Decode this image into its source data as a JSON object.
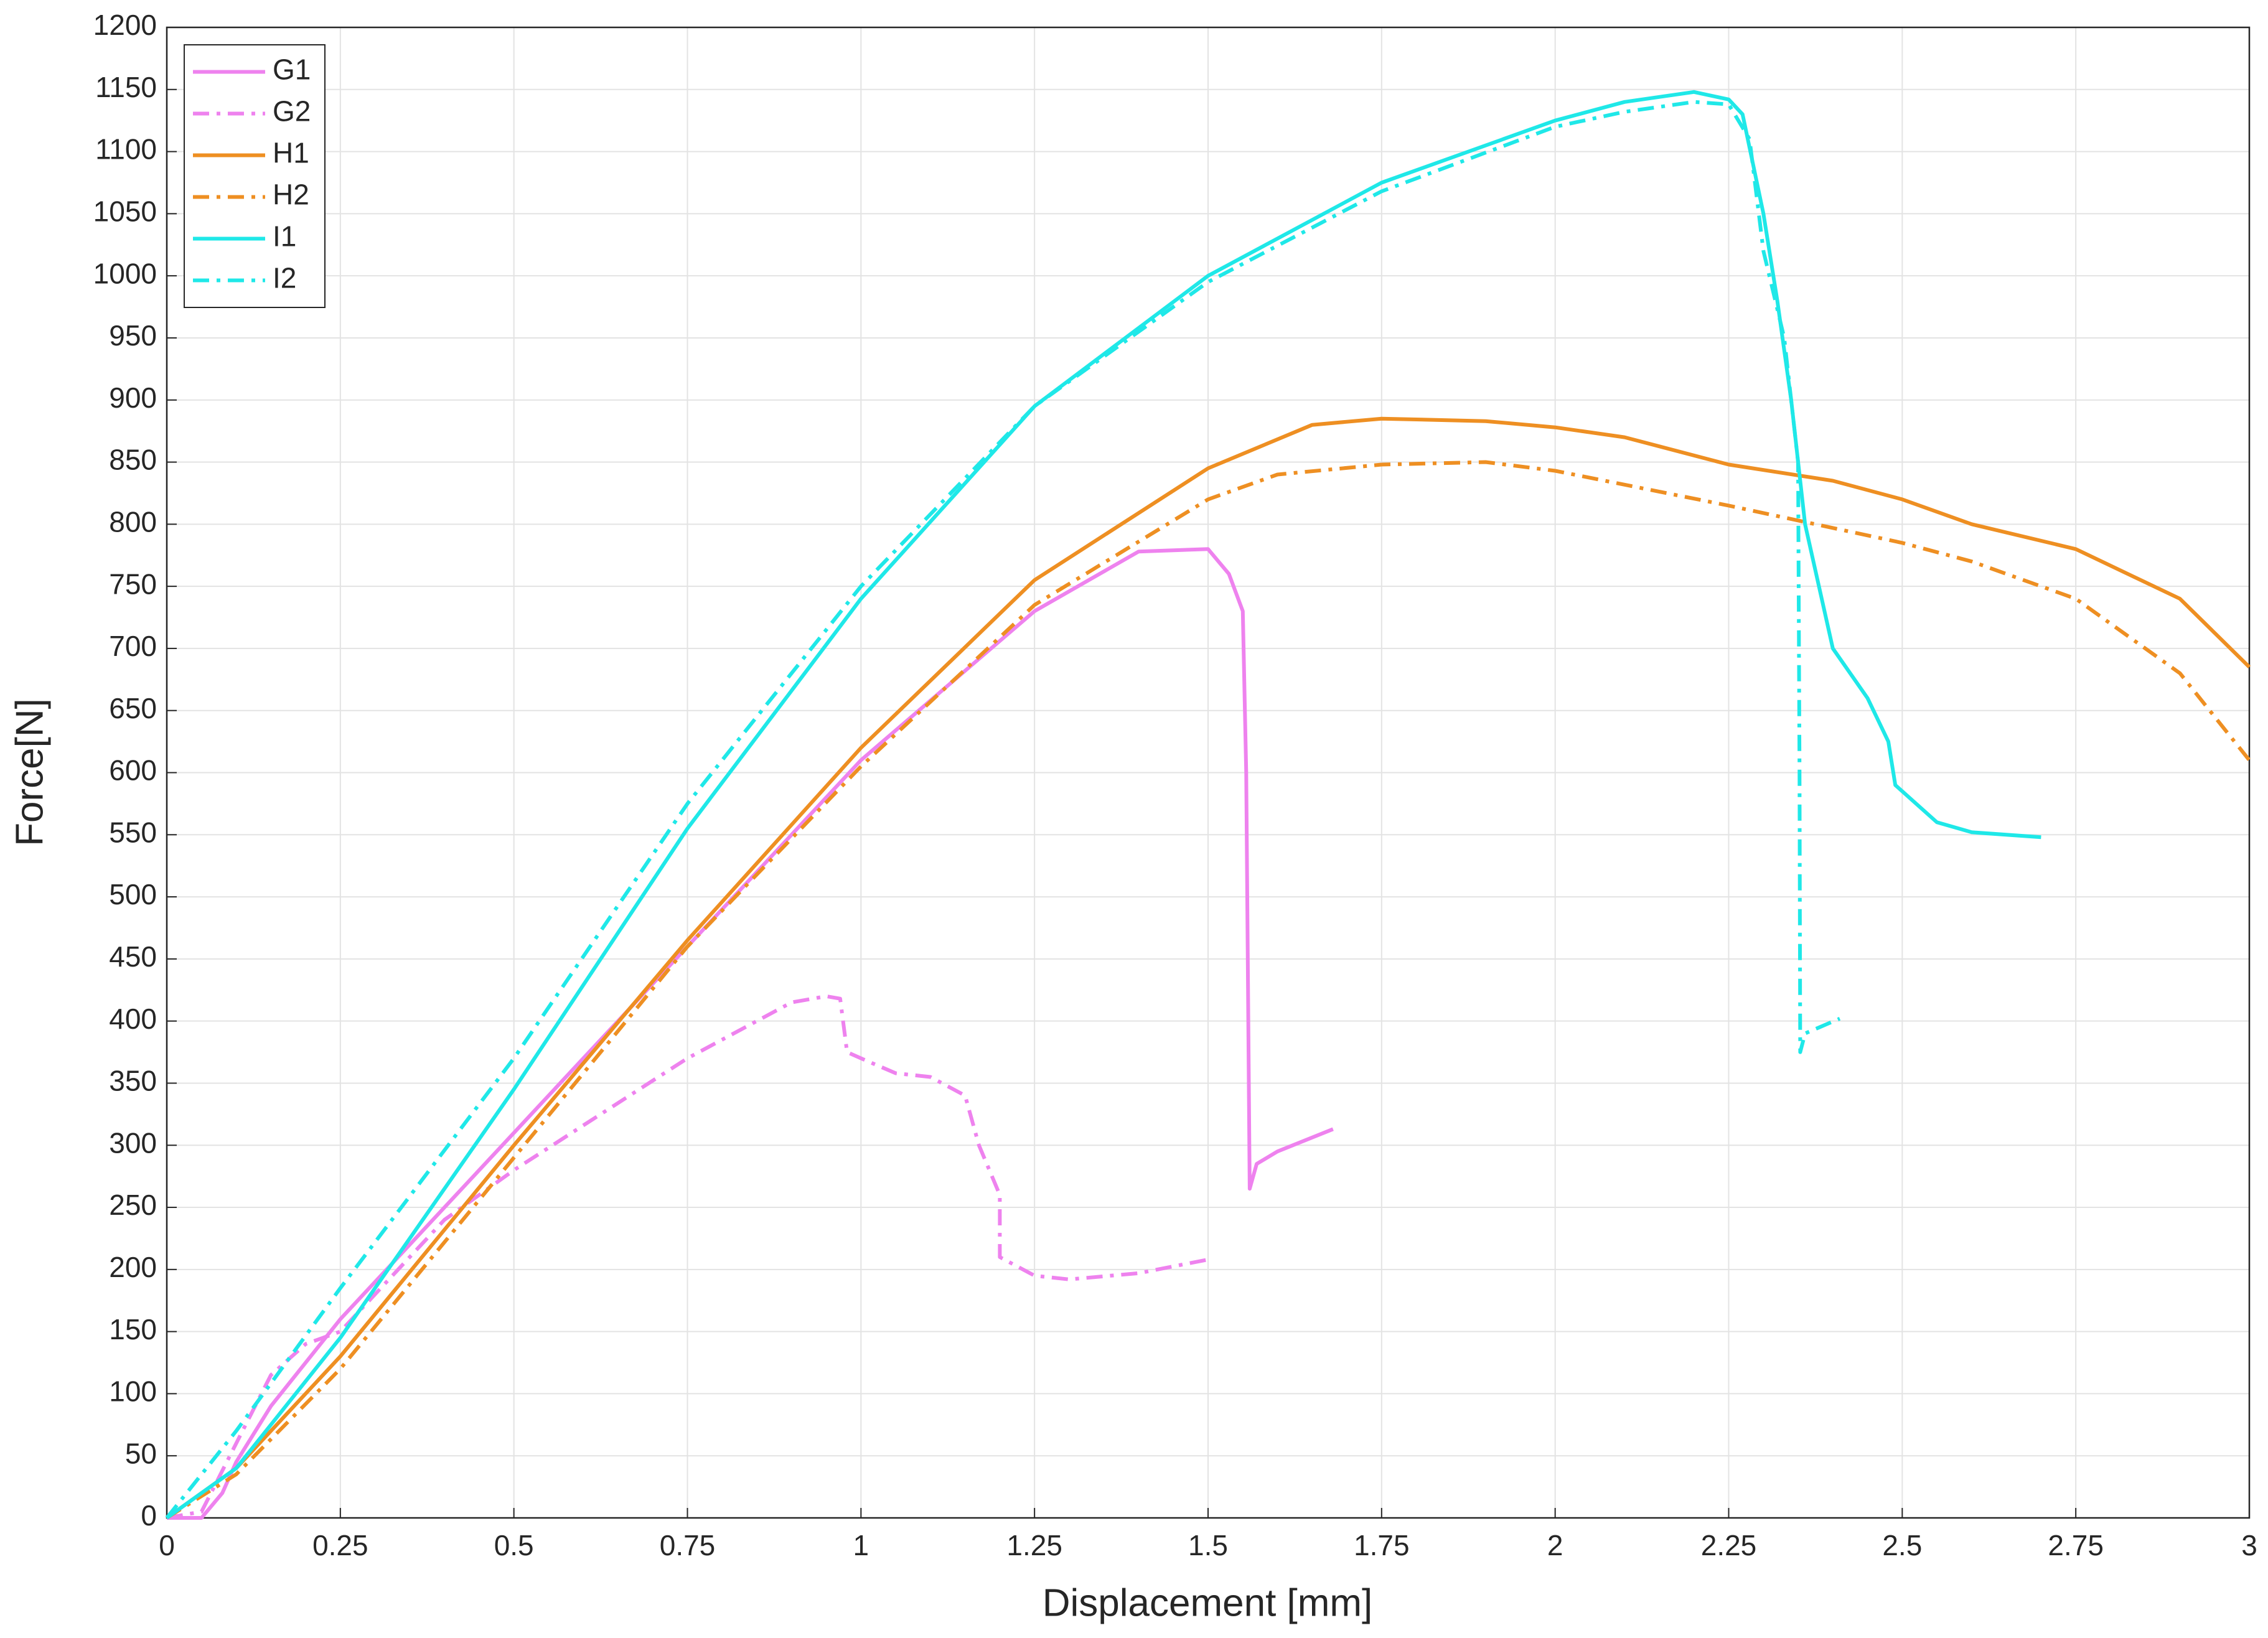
{
  "chart_data": {
    "type": "line",
    "x_label": "Displacement [mm]",
    "y_label": "Force[N]",
    "xlim": [
      0,
      3
    ],
    "ylim": [
      0,
      1200
    ],
    "xticks": [
      0,
      0.25,
      0.5,
      0.75,
      1,
      1.25,
      1.5,
      1.75,
      2,
      2.25,
      2.5,
      2.75,
      3
    ],
    "yticks": [
      0,
      50,
      100,
      150,
      200,
      250,
      300,
      350,
      400,
      450,
      500,
      550,
      600,
      650,
      700,
      750,
      800,
      850,
      900,
      950,
      1000,
      1050,
      1100,
      1150,
      1200
    ],
    "grid": true,
    "legend": "upper left",
    "series": [
      {
        "name": "G1",
        "color": "#ee82ee",
        "linestyle": "solid",
        "x": [
          0,
          0.05,
          0.08,
          0.1,
          0.15,
          0.25,
          0.5,
          0.75,
          1,
          1.25,
          1.4,
          1.5,
          1.53,
          1.55,
          1.555,
          1.56,
          1.57,
          1.6,
          1.68
        ],
        "values": [
          0,
          0,
          20,
          45,
          90,
          160,
          310,
          460,
          610,
          730,
          778,
          780,
          760,
          730,
          600,
          265,
          285,
          295,
          313
        ]
      },
      {
        "name": "G2",
        "color": "#ee82ee",
        "linestyle": "dashdot",
        "x": [
          0,
          0.05,
          0.1,
          0.15,
          0.2,
          0.25,
          0.4,
          0.5,
          0.75,
          0.9,
          0.95,
          0.97,
          0.98,
          1,
          1.05,
          1.1,
          1.15,
          1.17,
          1.2,
          1.2,
          1.25,
          1.3,
          1.4,
          1.5
        ],
        "values": [
          0,
          5,
          60,
          115,
          140,
          150,
          240,
          280,
          370,
          415,
          420,
          418,
          375,
          370,
          358,
          355,
          340,
          300,
          260,
          210,
          195,
          192,
          197,
          208
        ]
      },
      {
        "name": "H1",
        "color": "#ee8f22",
        "linestyle": "solid",
        "x": [
          0,
          0.1,
          0.25,
          0.5,
          0.75,
          1,
          1.25,
          1.5,
          1.65,
          1.75,
          1.9,
          2,
          2.1,
          2.25,
          2.4,
          2.5,
          2.6,
          2.75,
          2.9,
          3
        ],
        "values": [
          0,
          40,
          130,
          300,
          465,
          620,
          755,
          845,
          880,
          885,
          883,
          878,
          870,
          848,
          835,
          820,
          800,
          780,
          740,
          685
        ]
      },
      {
        "name": "H2",
        "color": "#ee8f22",
        "linestyle": "dashdot",
        "x": [
          0,
          0.1,
          0.25,
          0.5,
          0.75,
          1,
          1.25,
          1.5,
          1.6,
          1.75,
          1.9,
          2,
          2.25,
          2.5,
          2.6,
          2.75,
          2.9,
          3
        ],
        "values": [
          0,
          35,
          120,
          290,
          460,
          605,
          735,
          820,
          840,
          848,
          850,
          843,
          815,
          785,
          770,
          740,
          680,
          610
        ]
      },
      {
        "name": "I1",
        "color": "#1fe8e8",
        "linestyle": "solid",
        "x": [
          0,
          0.1,
          0.25,
          0.5,
          0.75,
          1,
          1.25,
          1.5,
          1.75,
          2,
          2.1,
          2.2,
          2.25,
          2.27,
          2.3,
          2.32,
          2.34,
          2.36,
          2.38,
          2.4,
          2.45,
          2.48,
          2.49,
          2.55,
          2.6,
          2.7
        ],
        "values": [
          0,
          40,
          145,
          345,
          555,
          740,
          895,
          1000,
          1075,
          1125,
          1140,
          1148,
          1142,
          1130,
          1050,
          980,
          900,
          800,
          750,
          700,
          660,
          625,
          590,
          560,
          552,
          548
        ]
      },
      {
        "name": "I2",
        "color": "#1fe8e8",
        "linestyle": "dashdot",
        "x": [
          0,
          0.1,
          0.25,
          0.5,
          0.75,
          1,
          1.25,
          1.5,
          1.75,
          2,
          2.1,
          2.2,
          2.25,
          2.28,
          2.3,
          2.33,
          2.35,
          2.352,
          2.353,
          2.36,
          2.41
        ],
        "values": [
          0,
          70,
          185,
          370,
          575,
          750,
          895,
          995,
          1068,
          1120,
          1132,
          1140,
          1138,
          1110,
          1020,
          950,
          850,
          600,
          375,
          390,
          402
        ]
      }
    ]
  }
}
